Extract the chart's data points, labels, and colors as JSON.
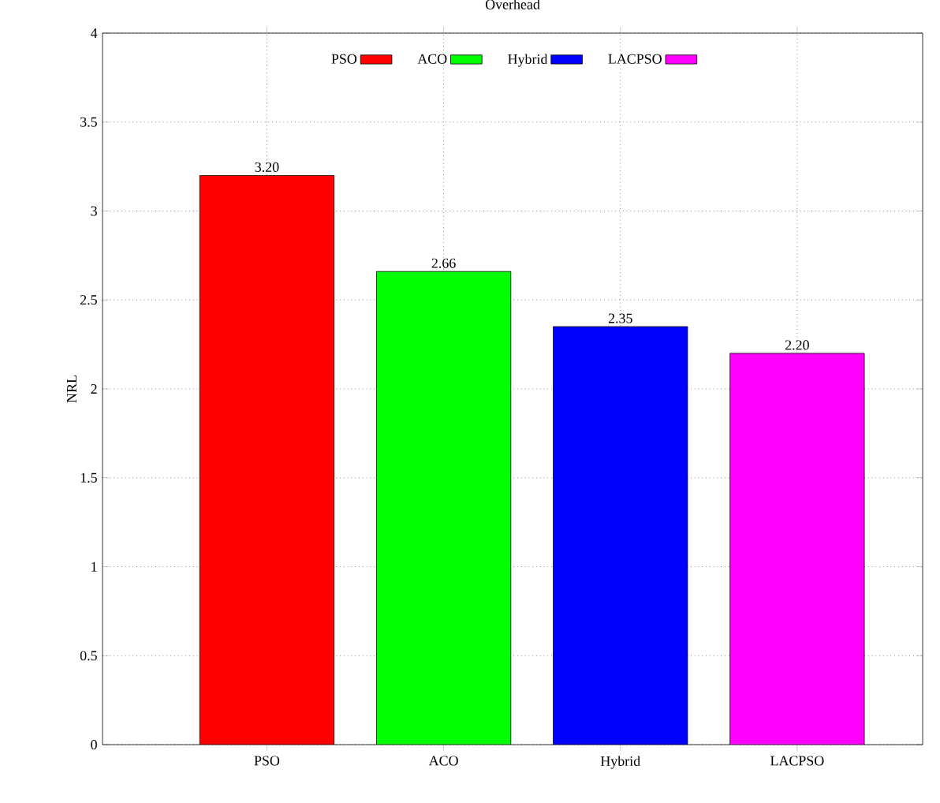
{
  "chart_data": {
    "type": "bar",
    "title": "Overhead",
    "ylabel": "NRL",
    "categories": [
      "PSO",
      "ACO",
      "Hybrid",
      "LACPSO"
    ],
    "series": [
      {
        "name": "PSO",
        "color": "#ff0000",
        "values": [
          3.2,
          null,
          null,
          null
        ],
        "value_labels": [
          "3.20",
          null,
          null,
          null
        ]
      },
      {
        "name": "ACO",
        "color": "#00ff00",
        "values": [
          null,
          2.66,
          null,
          null
        ],
        "value_labels": [
          null,
          "2.66",
          null,
          null
        ]
      },
      {
        "name": "Hybrid",
        "color": "#0000ff",
        "values": [
          null,
          null,
          2.35,
          null
        ],
        "value_labels": [
          null,
          null,
          "2.35",
          null
        ]
      },
      {
        "name": "LACPSO",
        "color": "#ff00ff",
        "values": [
          null,
          null,
          null,
          2.2
        ],
        "value_labels": [
          null,
          null,
          null,
          "2.20"
        ]
      }
    ],
    "ylim": [
      0,
      4
    ],
    "yticks": [
      0,
      0.5,
      1,
      1.5,
      2,
      2.5,
      3,
      3.5,
      4
    ],
    "grid": true,
    "legend": "top"
  }
}
